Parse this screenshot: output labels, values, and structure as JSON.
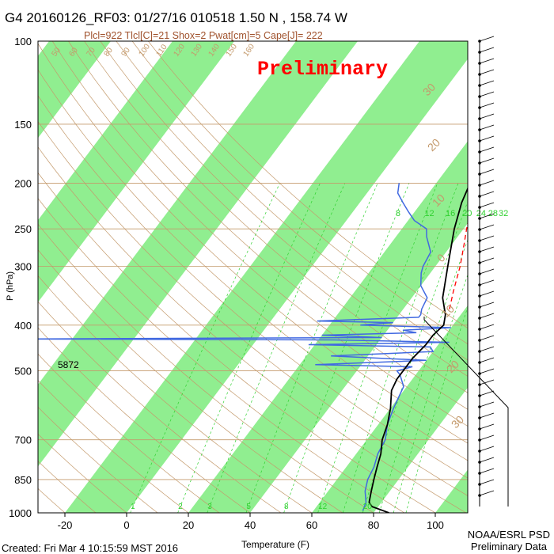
{
  "title": "G4 20160126_RF03: 01/27/16 010518   1.50 N , 158.74 W",
  "subtitle": "Plcl=922 Tlcl[C]=21 Shox=2 Pwat[cm]=5 Cape[J]= 222",
  "watermark": "Preliminary",
  "footer_left": "Created: Fri Mar  4 10:15:59 MST 2016",
  "footer_right_1": "NOAA/ESRL PSD",
  "footer_right_2": "Preliminary Data",
  "annotation_5872": "5872",
  "colors": {
    "band": "#90ee90",
    "temp": "#000000",
    "dewpoint": "#4169e1",
    "parcel": "#ff0000",
    "dry_adiabat": "#c49a6c",
    "mixing_ratio": "#2fd12f",
    "title_sub": "#a0522d",
    "watermark": "#ff0000"
  },
  "chart_data": {
    "type": "skew-t",
    "xlabel": "Temperature (F)",
    "ylabel": "P (hPa)",
    "x_ticks": [
      -20,
      0,
      20,
      40,
      60,
      80,
      100
    ],
    "y_ticks": [
      100,
      150,
      200,
      250,
      300,
      400,
      500,
      700,
      850,
      1000
    ],
    "dry_adiabat_labels": [
      "50",
      "60",
      "70",
      "80",
      "90",
      "100",
      "110",
      "120",
      "130",
      "140",
      "150",
      "160",
      "40",
      "30",
      "20",
      "10",
      "0",
      "-10",
      "-20"
    ],
    "upper_isotherm_labels": [
      "30",
      "20",
      "10",
      "0",
      "10",
      "20",
      "30"
    ],
    "mixing_ratio_labels_top": [
      "8",
      "12",
      "16",
      "20",
      "24",
      "28",
      "32"
    ],
    "mixing_ratio_labels_bottom": [
      "1",
      "2",
      "3",
      "5",
      "8",
      "12",
      "20"
    ],
    "temperature_F": [
      [
        1000,
        85
      ],
      [
        970,
        78
      ],
      [
        950,
        76
      ],
      [
        900,
        74
      ],
      [
        850,
        72
      ],
      [
        800,
        70
      ],
      [
        750,
        68
      ],
      [
        700,
        65
      ],
      [
        650,
        63
      ],
      [
        600,
        60
      ],
      [
        550,
        56
      ],
      [
        520,
        55
      ],
      [
        500,
        55
      ],
      [
        470,
        55
      ],
      [
        440,
        56
      ],
      [
        420,
        56
      ],
      [
        400,
        57
      ],
      [
        380,
        55
      ],
      [
        350,
        50
      ],
      [
        300,
        44
      ],
      [
        250,
        37
      ],
      [
        220,
        33
      ],
      [
        200,
        31
      ],
      [
        180,
        29
      ]
    ],
    "dewpoint_F": [
      [
        990,
        76
      ],
      [
        950,
        75
      ],
      [
        900,
        72
      ],
      [
        850,
        70
      ],
      [
        800,
        69
      ],
      [
        750,
        67
      ],
      [
        700,
        66
      ],
      [
        650,
        63
      ],
      [
        600,
        61
      ],
      [
        570,
        60
      ],
      [
        540,
        59
      ],
      [
        510,
        55
      ],
      [
        500,
        53
      ],
      [
        490,
        57
      ],
      [
        485,
        25
      ],
      [
        475,
        60
      ],
      [
        465,
        28
      ],
      [
        455,
        60
      ],
      [
        445,
        58
      ],
      [
        440,
        18
      ],
      [
        435,
        63
      ],
      [
        430,
        25
      ],
      [
        428,
        -75
      ],
      [
        425,
        40
      ],
      [
        420,
        20
      ],
      [
        415,
        50
      ],
      [
        410,
        45
      ],
      [
        405,
        60
      ],
      [
        400,
        30
      ],
      [
        395,
        40
      ],
      [
        392,
        15
      ],
      [
        385,
        47
      ],
      [
        380,
        47
      ],
      [
        370,
        46
      ],
      [
        350,
        45
      ],
      [
        330,
        40
      ],
      [
        310,
        37
      ],
      [
        300,
        36
      ],
      [
        280,
        35
      ],
      [
        260,
        30
      ],
      [
        250,
        28
      ],
      [
        240,
        22
      ],
      [
        230,
        18
      ],
      [
        220,
        14
      ],
      [
        210,
        10
      ],
      [
        200,
        8
      ]
    ],
    "parcel_F": [
      [
        370,
        55
      ],
      [
        340,
        52
      ],
      [
        300,
        48
      ],
      [
        270,
        44
      ],
      [
        250,
        41
      ],
      [
        230,
        38
      ],
      [
        210,
        34
      ],
      [
        190,
        31
      ],
      [
        180,
        29
      ]
    ]
  }
}
